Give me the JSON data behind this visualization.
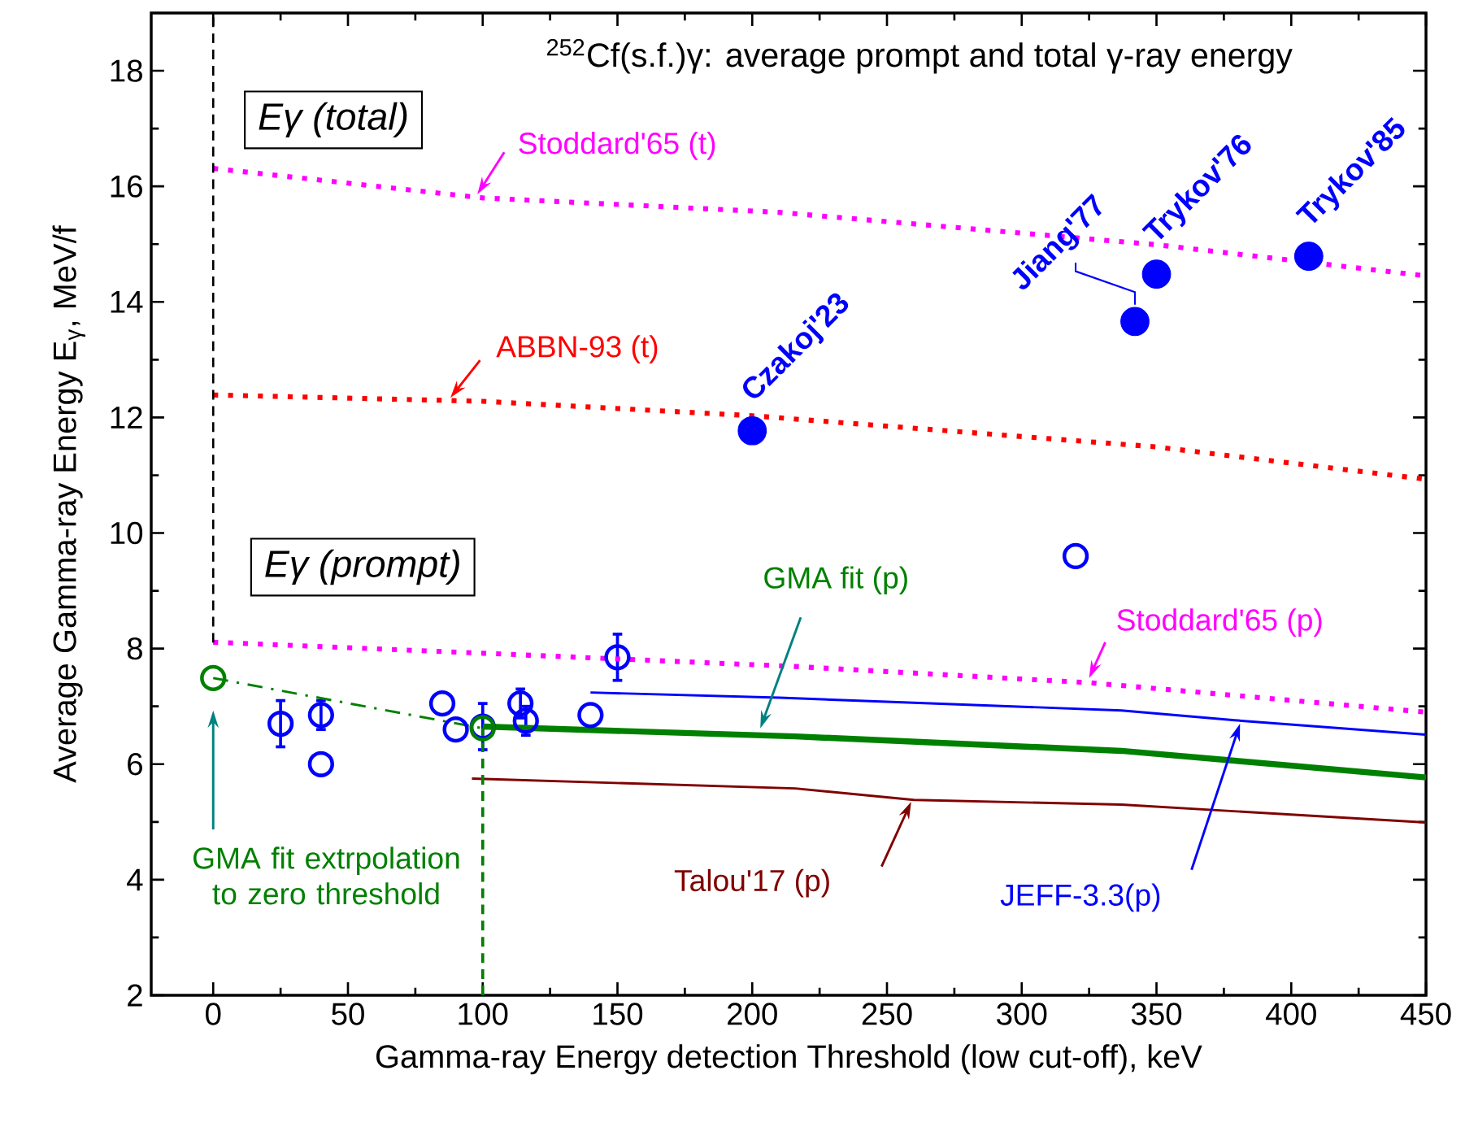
{
  "chart_data": {
    "type": "line",
    "title": "$^{252}$Cf(s.f.)γ: average prompt and total γ-ray energy",
    "xlabel": "Gamma-ray Energy detection Threshold (low cut-off), keV",
    "ylabel": "Average Gamma-ray Energy E$_{γ}$, MeV/f",
    "xlim": [
      -23,
      450
    ],
    "ylim": [
      2,
      19
    ],
    "xticks": [
      0,
      50,
      100,
      150,
      200,
      250,
      300,
      350,
      400,
      450
    ],
    "yticks": [
      2,
      4,
      6,
      8,
      10,
      12,
      14,
      16,
      18
    ],
    "annotations": [
      "Eγ (total)",
      "Eγ (prompt)"
    ],
    "series": [
      {
        "name": "Stoddard'65 (t)",
        "color": "#ff00ff",
        "line_style": "dotted",
        "x": [
          0,
          100,
          210,
          350,
          450
        ],
        "values": [
          16.31,
          15.8,
          15.55,
          14.99,
          14.45
        ]
      },
      {
        "name": "ABBN-93 (t)",
        "color": "#ff0000",
        "line_style": "dotted",
        "x": [
          0,
          100,
          200,
          350,
          450
        ],
        "values": [
          12.39,
          12.28,
          12.03,
          11.49,
          10.93
        ]
      },
      {
        "name": "Stoddard'65 (p)",
        "color": "#ff00ff",
        "line_style": "dotted",
        "x": [
          0,
          100,
          216,
          325,
          450
        ],
        "values": [
          8.11,
          7.92,
          7.69,
          7.41,
          6.9
        ]
      },
      {
        "name": "JEFF-3.3(p)",
        "color": "#0000ff",
        "line_style": "solid",
        "x": [
          140,
          210,
          337,
          379,
          450
        ],
        "values": [
          7.24,
          7.15,
          6.93,
          6.76,
          6.51
        ]
      },
      {
        "name": "GMA fit (p)",
        "color": "#008000",
        "line_style": "solid",
        "x": [
          100,
          216,
          337,
          379,
          450
        ],
        "values": [
          6.65,
          6.48,
          6.23,
          6.06,
          5.77
        ]
      },
      {
        "name": "Talou'17 (p)",
        "color": "#800000",
        "line_style": "solid",
        "x": [
          96,
          216,
          260,
          337,
          450
        ],
        "values": [
          5.75,
          5.58,
          5.38,
          5.3,
          4.99
        ]
      },
      {
        "name": "GMA fit extrpolation to zero threshold",
        "color": "#008000",
        "line_style": "dashdot",
        "marker": "circle",
        "x": [
          0,
          100
        ],
        "values": [
          7.49,
          6.62
        ]
      },
      {
        "type": "scatter",
        "color": "#0000ff",
        "marker": "circle",
        "x": [
          25,
          40,
          40,
          85,
          90,
          100,
          114,
          116,
          140,
          150,
          320
        ],
        "values": [
          6.7,
          6.85,
          6.0,
          7.05,
          6.6,
          6.65,
          7.05,
          6.75,
          6.85,
          7.85,
          9.6
        ],
        "errors": [
          0.4,
          0.25,
          null,
          null,
          null,
          0.4,
          0.25,
          0.25,
          null,
          0.4,
          null
        ]
      },
      {
        "type": "scatter",
        "name": "Czakoj'23",
        "color": "#0000ff",
        "marker": "circle",
        "x": [
          200
        ],
        "values": [
          11.77
        ]
      },
      {
        "type": "scatter",
        "name": "Jiang'77",
        "color": "#0000ff",
        "marker": "circle",
        "x": [
          342
        ],
        "values": [
          13.66
        ]
      },
      {
        "type": "scatter",
        "name": "Trykov'76",
        "color": "#0000ff",
        "marker": "circle",
        "x": [
          350
        ],
        "values": [
          14.48
        ]
      },
      {
        "type": "scatter",
        "name": "Trykov'85",
        "color": "#0000ff",
        "marker": "circle",
        "x": [
          406.5
        ],
        "values": [
          14.79
        ]
      }
    ],
    "ref_lines": [
      {
        "axis": "x",
        "value": 0,
        "color": "#000000",
        "line_style": "dashed"
      },
      {
        "axis": "x",
        "value": 100,
        "color": "#008000",
        "line_style": "dashed"
      }
    ]
  }
}
